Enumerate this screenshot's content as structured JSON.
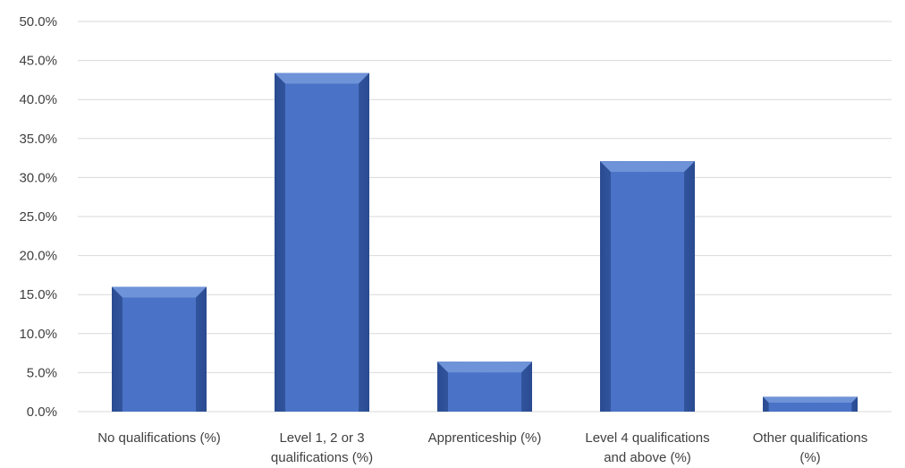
{
  "chart_data": {
    "type": "bar",
    "title": "",
    "xlabel": "",
    "ylabel": "",
    "categories": [
      [
        "No qualifications (%)"
      ],
      [
        "Level 1, 2 or 3",
        "qualifications (%)"
      ],
      [
        "Apprenticeship (%)"
      ],
      [
        "Level 4 qualifications",
        "and above (%)"
      ],
      [
        "Other qualifications",
        "(%)"
      ]
    ],
    "values": [
      16.0,
      43.4,
      6.4,
      32.1,
      1.9
    ],
    "ylim": [
      0,
      50
    ],
    "yticks": [
      {
        "value": 0,
        "label": "0.0%"
      },
      {
        "value": 5,
        "label": "5.0%"
      },
      {
        "value": 10,
        "label": "10.0%"
      },
      {
        "value": 15,
        "label": "15.0%"
      },
      {
        "value": 20,
        "label": "20.0%"
      },
      {
        "value": 25,
        "label": "25.0%"
      },
      {
        "value": 30,
        "label": "30.0%"
      },
      {
        "value": 35,
        "label": "35.0%"
      },
      {
        "value": 40,
        "label": "40.0%"
      },
      {
        "value": 45,
        "label": "45.0%"
      },
      {
        "value": 50,
        "label": "50.0%"
      }
    ],
    "grid": true,
    "legend": "none",
    "colors": {
      "bar_light": "#6f93d8",
      "bar_mid": "#4a73c7",
      "bar_dark": "#2a4b91",
      "gridline": "#d9d9d9",
      "text": "#404040"
    }
  }
}
